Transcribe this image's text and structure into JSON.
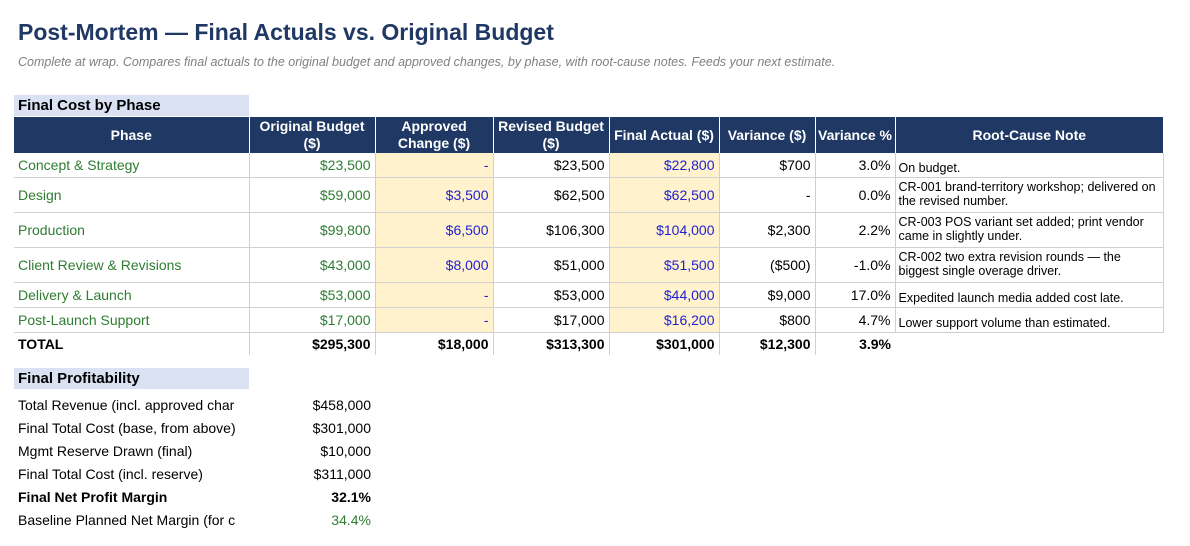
{
  "title": "Post-Mortem — Final Actuals vs. Original Budget",
  "subtitle": "Complete at wrap. Compares final actuals to the original budget and approved changes, by phase, with root-cause notes. Feeds your next estimate.",
  "cost_section": {
    "title": "Final Cost by Phase",
    "headers": {
      "phase": "Phase",
      "original_budget": "Original Budget ($)",
      "approved_change": "Approved Change ($)",
      "revised_budget": "Revised Budget ($)",
      "final_actual": "Final Actual ($)",
      "variance_dollar": "Variance ($)",
      "variance_pct": "Variance %",
      "note": "Root-Cause Note"
    },
    "rows": [
      {
        "phase": "Concept & Strategy",
        "original": "$23,500",
        "change": "-",
        "revised": "$23,500",
        "actual": "$22,800",
        "variance": "$700",
        "pct": "3.0%",
        "note": "On budget."
      },
      {
        "phase": "Design",
        "original": "$59,000",
        "change": "$3,500",
        "revised": "$62,500",
        "actual": "$62,500",
        "variance": "-",
        "pct": "0.0%",
        "note": "CR-001 brand-territory workshop; delivered on the revised number."
      },
      {
        "phase": "Production",
        "original": "$99,800",
        "change": "$6,500",
        "revised": "$106,300",
        "actual": "$104,000",
        "variance": "$2,300",
        "pct": "2.2%",
        "note": "CR-003 POS variant set added; print vendor came in slightly under."
      },
      {
        "phase": "Client Review & Revisions",
        "original": "$43,000",
        "change": "$8,000",
        "revised": "$51,000",
        "actual": "$51,500",
        "variance": "($500)",
        "pct": "-1.0%",
        "note": "CR-002 two extra revision rounds — the biggest single overage driver."
      },
      {
        "phase": "Delivery & Launch",
        "original": "$53,000",
        "change": "-",
        "revised": "$53,000",
        "actual": "$44,000",
        "variance": "$9,000",
        "pct": "17.0%",
        "note": "Expedited launch media added cost late."
      },
      {
        "phase": "Post-Launch Support",
        "original": "$17,000",
        "change": "-",
        "revised": "$17,000",
        "actual": "$16,200",
        "variance": "$800",
        "pct": "4.7%",
        "note": "Lower support volume than estimated."
      }
    ],
    "total": {
      "label": "TOTAL",
      "original": "$295,300",
      "change": "$18,000",
      "revised": "$313,300",
      "actual": "$301,000",
      "variance": "$12,300",
      "pct": "3.9%"
    }
  },
  "profit_section": {
    "title": "Final Profitability",
    "rows": [
      {
        "label": "Total Revenue (incl. approved char",
        "value": "$458,000"
      },
      {
        "label": "Final Total Cost (base, from above)",
        "value": "$301,000"
      },
      {
        "label": "Mgmt Reserve Drawn (final)",
        "value": "$10,000"
      },
      {
        "label": "Final Total Cost (incl. reserve)",
        "value": "$311,000"
      },
      {
        "label": "Final Net Profit Margin",
        "value": "32.1%"
      },
      {
        "label": "Baseline Planned Net Margin (for c",
        "value": "34.4%"
      }
    ]
  },
  "colors": {
    "header_bg": "#1f3864",
    "section_bg": "#d9e1f2",
    "input_bg": "#fff2cc",
    "phase_text": "#2e7d32",
    "input_text": "#1f1fd0"
  }
}
